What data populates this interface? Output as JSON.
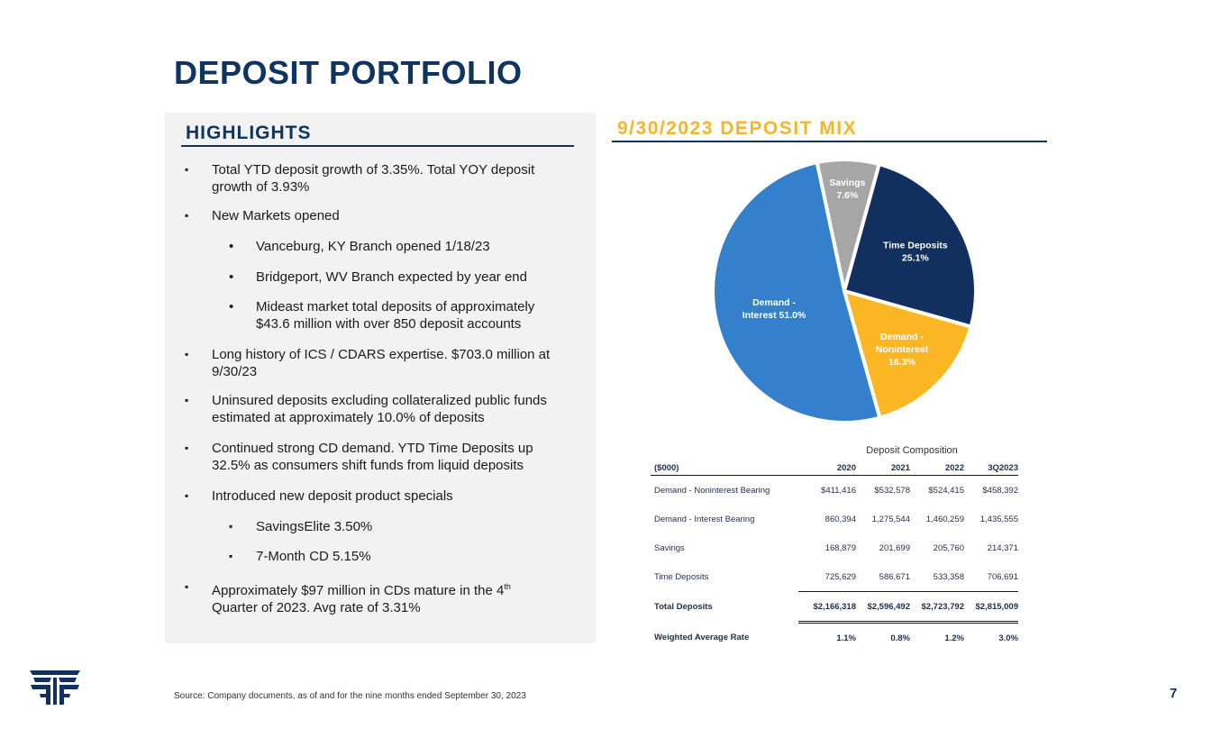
{
  "title": "DEPOSIT PORTFOLIO",
  "highlights": {
    "heading": "HIGHLIGHTS",
    "bullets": [
      {
        "marker": "▪",
        "text": "Total YTD deposit growth of 3.35%. Total YOY deposit growth of 3.93%"
      },
      {
        "marker": "▪",
        "text": "New Markets opened"
      },
      {
        "marker": "•",
        "text": "Vanceburg, KY Branch opened 1/18/23"
      },
      {
        "marker": "•",
        "text": "Bridgeport, WV Branch expected by year end"
      },
      {
        "marker": "•",
        "text": "Mideast market total deposits of approximately $43.6 million with over 850 deposit accounts"
      },
      {
        "marker": "▪",
        "text": "Long history of ICS / CDARS expertise. $703.0 million at 9/30/23"
      },
      {
        "marker": "▪",
        "text": "Uninsured deposits excluding collateralized public funds estimated at approximately 10.0% of deposits"
      },
      {
        "marker": "▪",
        "text": "Continued strong CD demand. YTD Time Deposits up 32.5% as consumers shift funds from liquid deposits"
      },
      {
        "marker": "▪",
        "text": "Introduced new deposit product specials"
      },
      {
        "marker": "▪",
        "text": "SavingsElite 3.50%"
      },
      {
        "marker": "▪",
        "text": "7-Month CD 5.15%"
      },
      {
        "marker": "▪",
        "text_a": "Approximately $97 million in CDs mature in the 4",
        "sup": "th",
        "text_b": "Quarter of 2023.  Avg rate of 3.31%"
      }
    ]
  },
  "chart_data": {
    "type": "pie",
    "title": "9/30/2023 DEPOSIT MIX",
    "slices": [
      {
        "name": "Savings",
        "label": "Savings",
        "pct_label": "7.6%",
        "value": 7.6,
        "color": "#a6a6a6"
      },
      {
        "name": "Time Deposits",
        "label": "Time Deposits",
        "pct_label": "25.1%",
        "value": 25.1,
        "color": "#12305f"
      },
      {
        "name": "Demand - Noninterest",
        "label": "Demand - Noninterest",
        "pct_label": "16.3%",
        "value": 16.3,
        "color": "#fbb723"
      },
      {
        "name": "Demand - Interest",
        "label": "Demand - Interest",
        "pct_label": "51.0%",
        "value": 51.0,
        "color": "#3480cc"
      }
    ]
  },
  "table": {
    "caption": "Deposit Composition",
    "headers": [
      "($000)",
      "2020",
      "2021",
      "2022",
      "3Q2023"
    ],
    "rows": [
      [
        "Demand - Noninterest Bearing",
        "$411,416",
        "$532,578",
        "$524,415",
        "$458,392"
      ],
      [
        "Demand - Interest Bearing",
        "860,394",
        "1,275,544",
        "1,460,259",
        "1,435,555"
      ],
      [
        "Savings",
        "168,879",
        "201,699",
        "205,760",
        "214,371"
      ],
      [
        "Time Deposits",
        "725,629",
        "586,671",
        "533,358",
        "706,691"
      ],
      [
        "Total Deposits",
        "$2,166,318",
        "$2,596,492",
        "$2,723,792",
        "$2,815,009"
      ],
      [
        "Weighted Average Rate",
        "1.1%",
        "0.8%",
        "1.2%",
        "3.0%"
      ]
    ]
  },
  "footer": {
    "source": "Source: Company documents, as of and for the nine months ended September 30, 2023",
    "page": "7"
  },
  "colors": {
    "navy": "#0f3460",
    "gold": "#f5b52b",
    "panel": "#f2f2f2"
  }
}
